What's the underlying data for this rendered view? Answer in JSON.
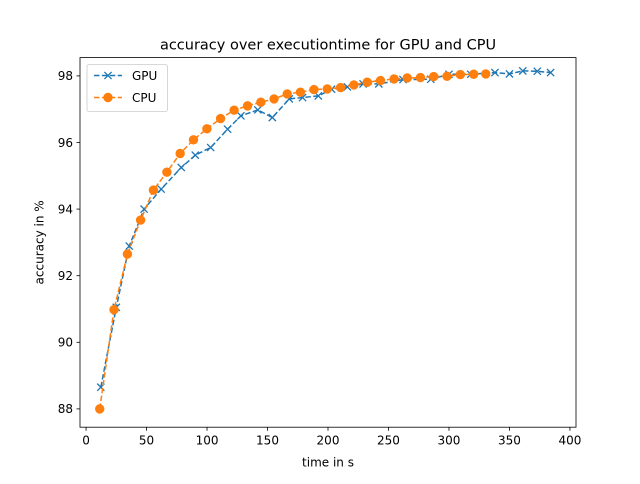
{
  "chart_data": {
    "type": "line",
    "title": "accuracy over executiontime for GPU and CPU",
    "xlabel": "time in s",
    "ylabel": "accuracy in %",
    "xlim": [
      -5,
      405
    ],
    "ylim": [
      87.45,
      98.55
    ],
    "xticks": [
      0,
      50,
      100,
      150,
      200,
      250,
      300,
      350,
      400
    ],
    "yticks": [
      88,
      90,
      92,
      94,
      96,
      98
    ],
    "grid": false,
    "legend_position": "upper left",
    "series": [
      {
        "name": "GPU",
        "color": "#1f77b4",
        "linestyle": "dashed",
        "marker": "x",
        "x": [
          12.2,
          25.0,
          35.7,
          48.0,
          62.1,
          78.7,
          90.3,
          103.0,
          117.0,
          128.0,
          142.0,
          154.0,
          168.0,
          179.0,
          192.0,
          203.0,
          216.0,
          229.0,
          242.0,
          262.0,
          285.0,
          300.0,
          318.0,
          338.0,
          350.0,
          361.0,
          373.0,
          384.0
        ],
        "y": [
          88.65,
          91.05,
          92.89,
          94.0,
          94.6,
          95.25,
          95.62,
          95.85,
          96.4,
          96.8,
          96.98,
          96.75,
          97.31,
          97.35,
          97.4,
          97.6,
          97.67,
          97.76,
          97.76,
          97.89,
          97.9,
          98.05,
          98.05,
          98.1,
          98.06,
          98.15,
          98.14,
          98.1
        ]
      },
      {
        "name": "CPU",
        "color": "#ff7f0e",
        "linestyle": "dashed",
        "marker": "o",
        "x": [
          11.3,
          23.1,
          34.2,
          45.1,
          55.7,
          66.8,
          77.8,
          88.8,
          99.9,
          111.2,
          122.4,
          133.5,
          144.5,
          155.4,
          166.3,
          177.2,
          188.4,
          199.4,
          210.4,
          221.4,
          232.4,
          243.4,
          254.6,
          265.5,
          276.4,
          287.4,
          298.4,
          309.4,
          320.4,
          330.4
        ],
        "y": [
          88.0,
          90.98,
          92.65,
          93.67,
          94.57,
          95.11,
          95.67,
          96.08,
          96.41,
          96.72,
          96.97,
          97.1,
          97.21,
          97.31,
          97.46,
          97.51,
          97.59,
          97.61,
          97.65,
          97.73,
          97.81,
          97.86,
          97.91,
          97.94,
          97.95,
          97.98,
          97.99,
          98.04,
          98.05,
          98.06
        ]
      }
    ]
  }
}
